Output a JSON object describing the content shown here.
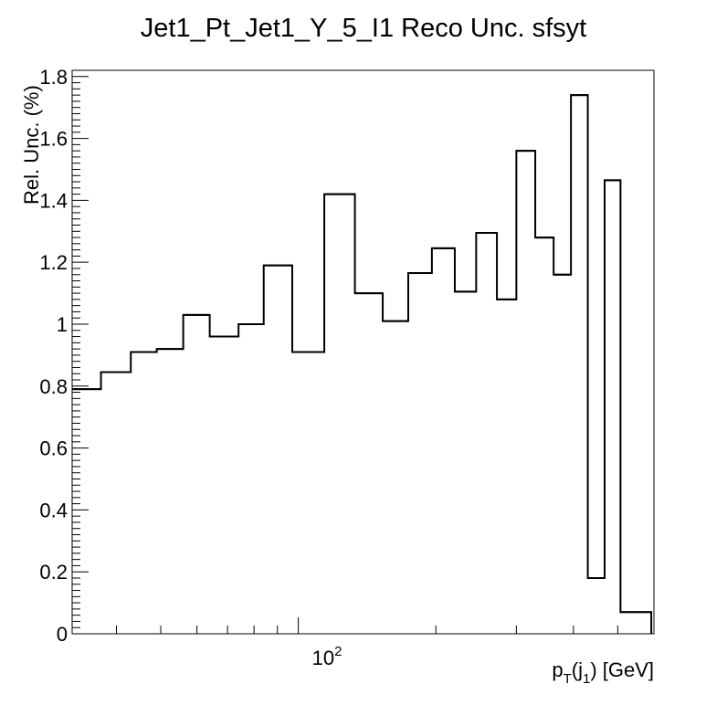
{
  "chart_data": {
    "type": "histogram",
    "title": "Jet1_Pt_Jet1_Y_5_I1 Reco Unc. sfsyt",
    "ylabel": "Rel. Unc. (%)",
    "xlabel": {
      "main": "p",
      "sub1": "T",
      "paren_open": "(j",
      "sub2": "1",
      "paren_close": ") [GeV]"
    },
    "x_scale": "log",
    "xlim": [
      32,
      600
    ],
    "ylim": [
      0,
      1.82
    ],
    "x_tick_label": {
      "base": "10",
      "exp": "2"
    },
    "y_ticks": [
      0,
      0.2,
      0.4,
      0.6,
      0.8,
      1,
      1.2,
      1.4,
      1.6,
      1.8
    ],
    "y_tick_labels": [
      "0",
      "0.2",
      "0.4",
      "0.6",
      "0.8",
      "1",
      "1.2",
      "1.4",
      "1.6",
      "1.8"
    ],
    "bin_edges": [
      32,
      37,
      43,
      49,
      56,
      64,
      74,
      84,
      97,
      114,
      133,
      153,
      174,
      196,
      220,
      245,
      272,
      300,
      330,
      362,
      395,
      430,
      468,
      507,
      548,
      592
    ],
    "values": [
      0.79,
      0.845,
      0.91,
      0.92,
      1.03,
      0.96,
      1.0,
      1.19,
      0.91,
      1.42,
      1.1,
      1.01,
      1.165,
      1.245,
      1.105,
      1.295,
      1.08,
      1.56,
      1.28,
      1.16,
      1.74,
      0.18,
      1.465,
      0.07,
      0.07
    ],
    "line_color": "#000000",
    "grid": false,
    "legend": "none"
  }
}
